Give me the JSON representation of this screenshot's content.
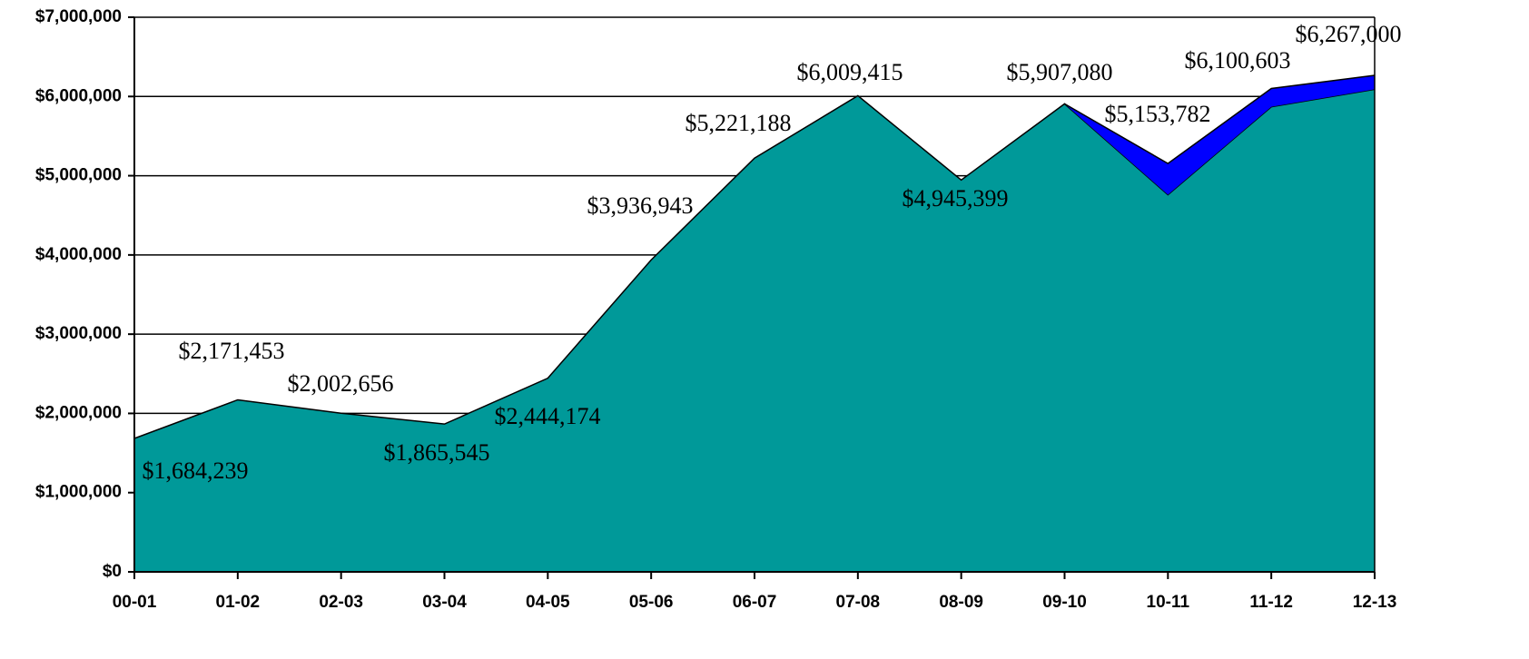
{
  "chart_data": {
    "type": "stacked_area",
    "categories": [
      "00-01",
      "01-02",
      "02-03",
      "03-04",
      "04-05",
      "05-06",
      "06-07",
      "07-08",
      "08-09",
      "09-10",
      "10-11",
      "11-12",
      "12-13"
    ],
    "series": [
      {
        "color": "#009999",
        "values": [
          1684239,
          2171453,
          2002656,
          1865545,
          2444174,
          3936943,
          5221188,
          6009415,
          4945399,
          5907080,
          4760000,
          5870000,
          6090000
        ]
      },
      {
        "color": "#0000ff",
        "values": [
          null,
          null,
          null,
          null,
          null,
          null,
          null,
          null,
          null,
          0,
          393782,
          230603,
          177000
        ]
      }
    ],
    "total_labels": [
      "$1,684,239",
      "$2,171,453",
      "$2,002,656",
      "$1,865,545",
      "$2,444,174",
      "$3,936,943",
      "$5,221,188",
      "$6,009,415",
      "$4,945,399",
      "$5,907,080",
      "$5,153,782",
      "$6,100,603",
      "$6,267,000"
    ],
    "ylim": [
      0,
      7000000
    ],
    "yticks": [
      {
        "value": 0,
        "label": "$0"
      },
      {
        "value": 1000000,
        "label": "$1,000,000"
      },
      {
        "value": 2000000,
        "label": "$2,000,000"
      },
      {
        "value": 3000000,
        "label": "$3,000,000"
      },
      {
        "value": 4000000,
        "label": "$4,000,000"
      },
      {
        "value": 5000000,
        "label": "$5,000,000"
      },
      {
        "value": 6000000,
        "label": "$6,000,000"
      },
      {
        "value": 7000000,
        "label": "$7,000,000"
      }
    ],
    "grid": true
  }
}
